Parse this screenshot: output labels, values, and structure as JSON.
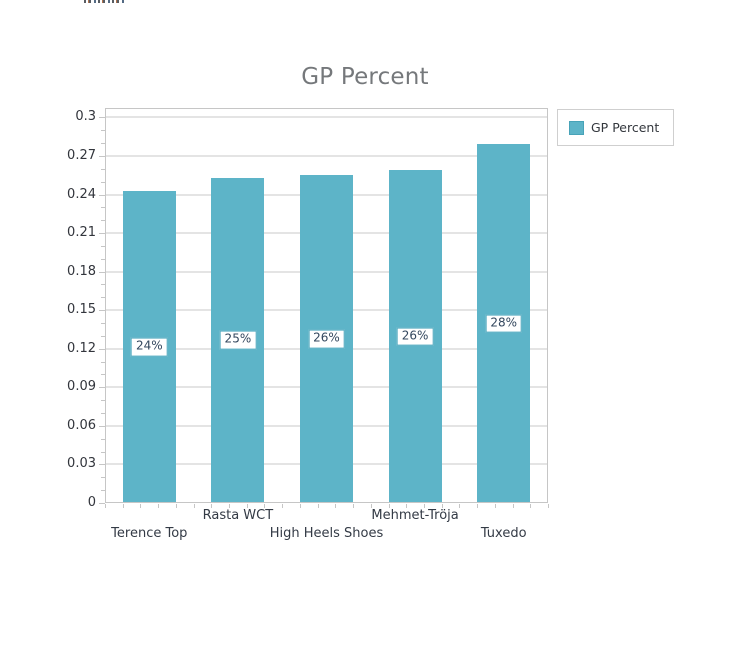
{
  "chart": {
    "title": "GP Percent",
    "legend": {
      "position": "right",
      "items": [
        {
          "label": "GP Percent",
          "color": "#5db4c8"
        }
      ]
    }
  },
  "chart_data": {
    "type": "bar",
    "title": "GP Percent",
    "categories": [
      "Terence Top",
      "Rasta WCT",
      "High Heels Shoes",
      "Mehmet-Tröja",
      "Tuxedo"
    ],
    "series": [
      {
        "name": "GP Percent",
        "values": [
          0.243,
          0.253,
          0.255,
          0.259,
          0.279
        ],
        "labels": [
          "24%",
          "25%",
          "26%",
          "26%",
          "28%"
        ]
      }
    ],
    "xlabel": "",
    "ylabel": "",
    "ylim": [
      0,
      0.3
    ],
    "y_major_step": 0.03,
    "y_minor_step": 0.01,
    "y_tick_labels": [
      "0",
      "0.03",
      "0.06",
      "0.09",
      "0.12",
      "0.15",
      "0.18",
      "0.21",
      "0.24",
      "0.27",
      "0.3"
    ],
    "grid": "horizontal-major",
    "legend_position": "right",
    "x_label_layout": "staggered-two-rows"
  },
  "colors": {
    "bar": "#5db4c8",
    "bar_border": "#48a3b8",
    "grid": "#e4e4e4",
    "axis": "#c6c6c6",
    "title": "#75787b",
    "axis_text": "#32353c",
    "category_text": "#333a45",
    "bar_label_text": "#33475e",
    "bar_label_border": "#54abc0",
    "legend_border": "#cfcfcf",
    "legend_text": "#33373d"
  }
}
